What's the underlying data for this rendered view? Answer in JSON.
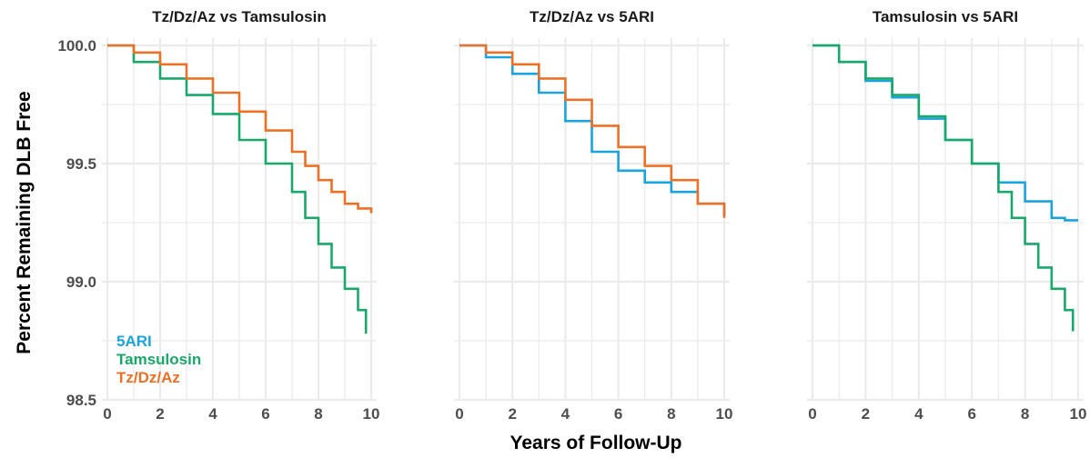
{
  "chart_data": {
    "type": "line",
    "xlabel": "Years of Follow-Up",
    "ylabel": "Percent Remaining DLB Free",
    "xlim": [
      0,
      10
    ],
    "ylim": [
      98.5,
      100.0
    ],
    "x_ticks": [
      "0",
      "2",
      "4",
      "6",
      "8",
      "10"
    ],
    "y_ticks": [
      "98.5",
      "99.0",
      "99.5",
      "100.0"
    ],
    "grid": true,
    "legend": {
      "placement": "bottom-left",
      "entries": [
        {
          "label": "5ARI",
          "color": "#1BA3DE"
        },
        {
          "label": "Tamsulosin",
          "color": "#1AA86A"
        },
        {
          "label": "Tz/Dz/Az",
          "color": "#EC7026"
        }
      ]
    },
    "panels": [
      {
        "title": "Tz/Dz/Az vs Tamsulosin",
        "series": [
          {
            "name": "Tamsulosin",
            "color": "#1AA86A",
            "x": [
              0,
              1,
              2,
              3,
              4,
              5,
              6,
              7,
              7.5,
              8,
              8.5,
              9,
              9.5,
              9.8
            ],
            "y": [
              100.0,
              99.93,
              99.86,
              99.79,
              99.71,
              99.6,
              99.5,
              99.38,
              99.27,
              99.16,
              99.06,
              98.97,
              98.88,
              98.78
            ]
          },
          {
            "name": "Tz/Dz/Az",
            "color": "#EC7026",
            "x": [
              0,
              1,
              2,
              3,
              4,
              5,
              6,
              7,
              7.5,
              8,
              8.5,
              9,
              9.5,
              10
            ],
            "y": [
              100.0,
              99.97,
              99.92,
              99.86,
              99.8,
              99.72,
              99.64,
              99.55,
              99.49,
              99.43,
              99.38,
              99.33,
              99.31,
              99.29
            ]
          }
        ]
      },
      {
        "title": "Tz/Dz/Az vs 5ARI",
        "series": [
          {
            "name": "5ARI",
            "color": "#1BA3DE",
            "x": [
              0,
              1,
              2,
              3,
              4,
              5,
              6,
              7,
              8,
              9,
              10
            ],
            "y": [
              100.0,
              99.95,
              99.88,
              99.8,
              99.68,
              99.55,
              99.47,
              99.42,
              99.38,
              99.33,
              99.28
            ]
          },
          {
            "name": "Tz/Dz/Az",
            "color": "#EC7026",
            "x": [
              0,
              1,
              2,
              3,
              4,
              5,
              6,
              7,
              8,
              9,
              10
            ],
            "y": [
              100.0,
              99.97,
              99.92,
              99.86,
              99.77,
              99.66,
              99.57,
              99.49,
              99.43,
              99.33,
              99.27
            ]
          }
        ]
      },
      {
        "title": "Tamsulosin vs 5ARI",
        "series": [
          {
            "name": "5ARI",
            "color": "#1BA3DE",
            "x": [
              0,
              1,
              2,
              3,
              4,
              5,
              6,
              7,
              8,
              9,
              9.5,
              10
            ],
            "y": [
              100.0,
              99.93,
              99.85,
              99.78,
              99.69,
              99.6,
              99.5,
              99.42,
              99.34,
              99.27,
              99.26,
              99.26
            ]
          },
          {
            "name": "Tamsulosin",
            "color": "#1AA86A",
            "x": [
              0,
              1,
              2,
              3,
              4,
              5,
              6,
              7,
              7.5,
              8,
              8.5,
              9,
              9.5,
              9.8
            ],
            "y": [
              100.0,
              99.93,
              99.86,
              99.79,
              99.7,
              99.6,
              99.5,
              99.38,
              99.27,
              99.16,
              99.06,
              98.97,
              98.88,
              98.79
            ]
          }
        ]
      }
    ]
  }
}
